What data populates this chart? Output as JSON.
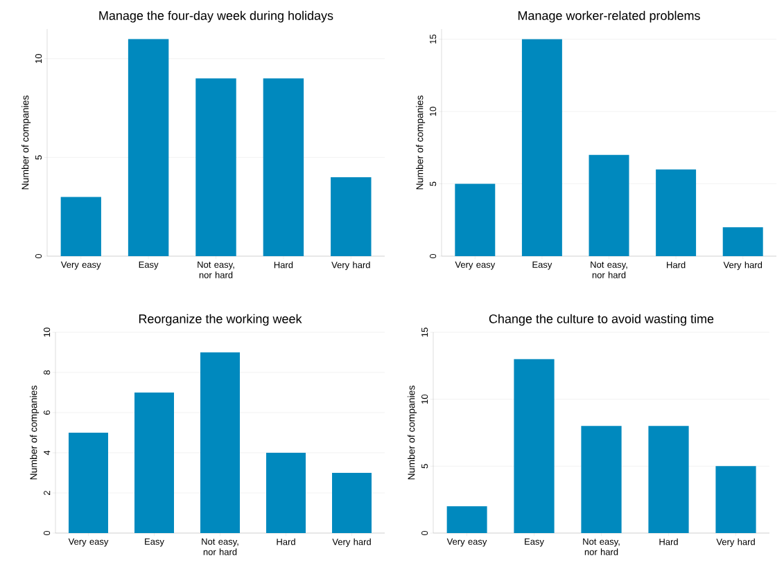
{
  "chart_data": [
    {
      "type": "bar",
      "title": "Manage the four-day week during holidays",
      "ylabel": "Number of companies",
      "categories": [
        "Very easy",
        "Easy",
        "Not easy, nor hard",
        "Hard",
        "Very hard"
      ],
      "values": [
        3,
        11,
        9,
        9,
        4
      ],
      "color": "#0089be",
      "ylim": [
        0,
        11.5
      ],
      "yticks": [
        0,
        5,
        10
      ],
      "grid": "y"
    },
    {
      "type": "bar",
      "title": "Manage worker-related problems",
      "ylabel": "Number of companies",
      "categories": [
        "Very easy",
        "Easy",
        "Not easy, nor hard",
        "Hard",
        "Very hard"
      ],
      "values": [
        5,
        15,
        7,
        6,
        2
      ],
      "color": "#0089be",
      "ylim": [
        0,
        15.7
      ],
      "yticks": [
        0,
        5,
        10,
        15
      ],
      "grid": "y"
    },
    {
      "type": "bar",
      "title": "Reorganize the working week",
      "ylabel": "Number of companies",
      "categories": [
        "Very easy",
        "Easy",
        "Not easy, nor hard",
        "Hard",
        "Very hard"
      ],
      "values": [
        5,
        7,
        9,
        4,
        3
      ],
      "color": "#0089be",
      "ylim": [
        0,
        10
      ],
      "yticks": [
        0,
        2,
        4,
        6,
        8,
        10
      ],
      "grid": "y"
    },
    {
      "type": "bar",
      "title": "Change the culture to avoid wasting time",
      "ylabel": "Number of companies",
      "categories": [
        "Very easy",
        "Easy",
        "Not easy, nor hard",
        "Hard",
        "Very hard"
      ],
      "values": [
        2,
        13,
        8,
        8,
        5
      ],
      "color": "#0089be",
      "ylim": [
        0,
        15
      ],
      "yticks": [
        0,
        5,
        10,
        15
      ],
      "grid": "y"
    }
  ]
}
